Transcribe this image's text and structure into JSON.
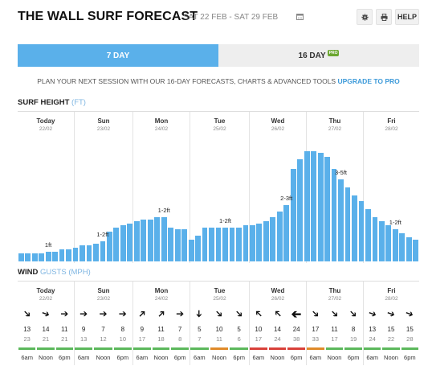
{
  "header": {
    "title": "THE WALL SURF FORECAST",
    "date_range": "SAT 22 FEB - SAT 29 FEB",
    "calendar_icon": "calendar-icon",
    "settings_icon": "gear-icon",
    "print_icon": "print-icon",
    "help_label": "HELP"
  },
  "tabs": {
    "active": "7 DAY",
    "inactive": "16 DAY",
    "pro_badge": "PRO"
  },
  "promo": {
    "text": "PLAN YOUR NEXT SESSION WITH OUR 16-DAY FORECASTS, CHARTS & ADVANCED TOOLS",
    "link": "UPGRADE TO PRO"
  },
  "surf": {
    "title": "SURF HEIGHT",
    "unit": "(FT)"
  },
  "wind": {
    "title": "WIND",
    "unit": "GUSTS (MPH)"
  },
  "days": [
    {
      "name": "Today",
      "date": "22/02"
    },
    {
      "name": "Sun",
      "date": "23/02"
    },
    {
      "name": "Mon",
      "date": "24/02"
    },
    {
      "name": "Tue",
      "date": "25/02"
    },
    {
      "name": "Wed",
      "date": "26/02"
    },
    {
      "name": "Thu",
      "date": "27/02"
    },
    {
      "name": "Fri",
      "date": "28/02"
    }
  ],
  "chart_data": {
    "type": "bar",
    "title": "SURF HEIGHT (FT)",
    "xlabel": "",
    "ylabel": "",
    "ylim": [
      0,
      6
    ],
    "values": [
      0.4,
      0.4,
      0.4,
      0.4,
      0.5,
      0.5,
      0.6,
      0.6,
      0.7,
      0.8,
      0.8,
      0.9,
      1.0,
      1.5,
      1.7,
      1.8,
      1.9,
      2.0,
      2.1,
      2.1,
      2.2,
      2.2,
      1.7,
      1.6,
      1.6,
      1.1,
      1.3,
      1.7,
      1.7,
      1.7,
      1.7,
      1.7,
      1.7,
      1.8,
      1.8,
      1.9,
      2.0,
      2.2,
      2.5,
      2.8,
      4.6,
      5.1,
      5.5,
      5.5,
      5.4,
      5.2,
      4.6,
      4.1,
      3.7,
      3.3,
      3.0,
      2.6,
      2.2,
      2.0,
      1.8,
      1.6,
      1.4,
      1.2,
      1.1
    ],
    "annotations": [
      {
        "label": "1ft",
        "index": 4
      },
      {
        "label": "1-2ft",
        "index": 12
      },
      {
        "label": "1-2ft",
        "index": 21
      },
      {
        "label": "1-2ft",
        "index": 30
      },
      {
        "label": "2-3ft",
        "index": 39
      },
      {
        "label": "3-5ft",
        "index": 47
      },
      {
        "label": "1-2ft",
        "index": 55
      }
    ]
  },
  "wind_data": {
    "times": [
      "6am",
      "Noon",
      "6pm"
    ],
    "slots": [
      {
        "speed": "13",
        "gust": "23",
        "rot": 45,
        "big": false,
        "color": "#5cb85c"
      },
      {
        "speed": "14",
        "gust": "21",
        "rot": 20,
        "big": false,
        "color": "#5cb85c"
      },
      {
        "speed": "11",
        "gust": "21",
        "rot": 0,
        "big": false,
        "color": "#5cb85c"
      },
      {
        "speed": "9",
        "gust": "13",
        "rot": 0,
        "big": false,
        "color": "#5cb85c"
      },
      {
        "speed": "7",
        "gust": "12",
        "rot": 0,
        "big": false,
        "color": "#5cb85c"
      },
      {
        "speed": "8",
        "gust": "10",
        "rot": 0,
        "big": false,
        "color": "#5cb85c"
      },
      {
        "speed": "9",
        "gust": "17",
        "rot": -45,
        "big": false,
        "color": "#5cb85c"
      },
      {
        "speed": "11",
        "gust": "18",
        "rot": -45,
        "big": false,
        "color": "#5cb85c"
      },
      {
        "speed": "7",
        "gust": "8",
        "rot": 0,
        "big": false,
        "color": "#5cb85c"
      },
      {
        "speed": "5",
        "gust": "7",
        "rot": 90,
        "big": false,
        "color": "#5cb85c"
      },
      {
        "speed": "10",
        "gust": "11",
        "rot": 45,
        "big": false,
        "color": "#e08a2a"
      },
      {
        "speed": "5",
        "gust": "6",
        "rot": 45,
        "big": false,
        "color": "#5cb85c"
      },
      {
        "speed": "10",
        "gust": "17",
        "rot": -135,
        "big": false,
        "color": "#d9413a"
      },
      {
        "speed": "14",
        "gust": "24",
        "rot": -135,
        "big": false,
        "color": "#d9413a"
      },
      {
        "speed": "24",
        "gust": "38",
        "rot": 180,
        "big": true,
        "color": "#d9413a"
      },
      {
        "speed": "17",
        "gust": "33",
        "rot": 45,
        "big": false,
        "color": "#e08a2a"
      },
      {
        "speed": "11",
        "gust": "17",
        "rot": 45,
        "big": false,
        "color": "#5cb85c"
      },
      {
        "speed": "8",
        "gust": "19",
        "rot": 45,
        "big": false,
        "color": "#5cb85c"
      },
      {
        "speed": "13",
        "gust": "24",
        "rot": 20,
        "big": false,
        "color": "#5cb85c"
      },
      {
        "speed": "15",
        "gust": "22",
        "rot": 20,
        "big": false,
        "color": "#5cb85c"
      },
      {
        "speed": "15",
        "gust": "28",
        "rot": 20,
        "big": false,
        "color": "#5cb85c"
      }
    ]
  }
}
